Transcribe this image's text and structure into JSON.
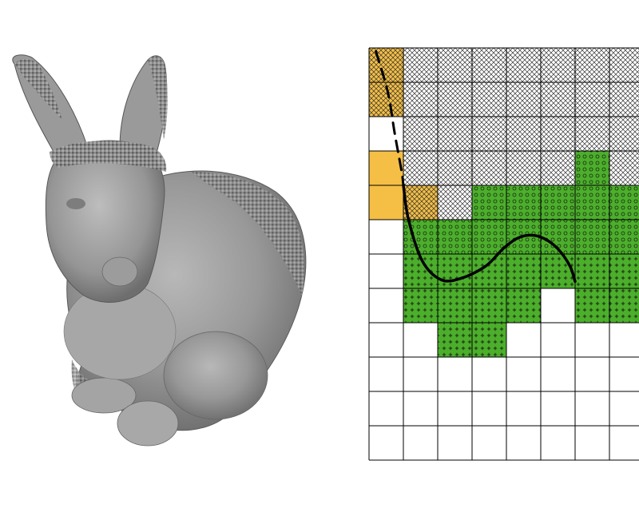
{
  "figure": {
    "left_panel": {
      "subject": "voxelized-bunny-render"
    },
    "right_panel": {
      "grid": {
        "cols": 8,
        "rows": 12,
        "line_color": "#000000",
        "background": "#ffffff"
      },
      "colors": {
        "orange": "#f5bf45",
        "green": "#4caf2c",
        "hatch": "#333333",
        "mark": "#1a2a12"
      },
      "cells": {
        "orange_plain": [
          [
            0,
            3
          ],
          [
            0,
            4
          ]
        ],
        "orange_hatched": [
          [
            0,
            0
          ],
          [
            0,
            1
          ],
          [
            1,
            4
          ]
        ],
        "hatched": [
          [
            1,
            0
          ],
          [
            2,
            0
          ],
          [
            3,
            0
          ],
          [
            4,
            0
          ],
          [
            5,
            0
          ],
          [
            6,
            0
          ],
          [
            7,
            0
          ],
          [
            1,
            1
          ],
          [
            2,
            1
          ],
          [
            3,
            1
          ],
          [
            4,
            1
          ],
          [
            5,
            1
          ],
          [
            6,
            1
          ],
          [
            7,
            1
          ],
          [
            1,
            2
          ],
          [
            2,
            2
          ],
          [
            3,
            2
          ],
          [
            4,
            2
          ],
          [
            5,
            2
          ],
          [
            6,
            2
          ],
          [
            7,
            2
          ],
          [
            1,
            3
          ],
          [
            2,
            3
          ],
          [
            3,
            3
          ],
          [
            4,
            3
          ],
          [
            5,
            3
          ],
          [
            7,
            3
          ],
          [
            2,
            4
          ]
        ],
        "green_circle": [
          [
            6,
            3
          ],
          [
            3,
            4
          ],
          [
            4,
            4
          ],
          [
            5,
            4
          ],
          [
            6,
            4
          ],
          [
            7,
            4
          ],
          [
            1,
            5
          ],
          [
            2,
            5
          ],
          [
            3,
            5
          ],
          [
            4,
            5
          ],
          [
            5,
            5
          ],
          [
            6,
            5
          ],
          [
            7,
            5
          ]
        ],
        "green_plus": [
          [
            1,
            6
          ],
          [
            2,
            6
          ],
          [
            3,
            6
          ],
          [
            4,
            6
          ],
          [
            5,
            6
          ],
          [
            6,
            6
          ],
          [
            7,
            6
          ],
          [
            1,
            7
          ],
          [
            2,
            7
          ],
          [
            3,
            7
          ],
          [
            4,
            7
          ],
          [
            6,
            7
          ],
          [
            7,
            7
          ],
          [
            2,
            8
          ],
          [
            3,
            8
          ]
        ]
      },
      "dashed_curve": [
        [
          0.2,
          0.1
        ],
        [
          0.55,
          1.3
        ],
        [
          0.75,
          2.5
        ],
        [
          0.95,
          3.6
        ],
        [
          1.0,
          4.0
        ]
      ],
      "solid_curve": [
        [
          1.0,
          4.0
        ],
        [
          1.15,
          5.0
        ],
        [
          1.55,
          6.2
        ],
        [
          2.1,
          6.75
        ],
        [
          2.7,
          6.7
        ],
        [
          3.4,
          6.35
        ],
        [
          3.9,
          5.85
        ],
        [
          4.3,
          5.55
        ],
        [
          4.7,
          5.45
        ],
        [
          5.1,
          5.55
        ],
        [
          5.5,
          5.85
        ],
        [
          5.85,
          6.35
        ],
        [
          6.0,
          6.8
        ]
      ]
    }
  }
}
